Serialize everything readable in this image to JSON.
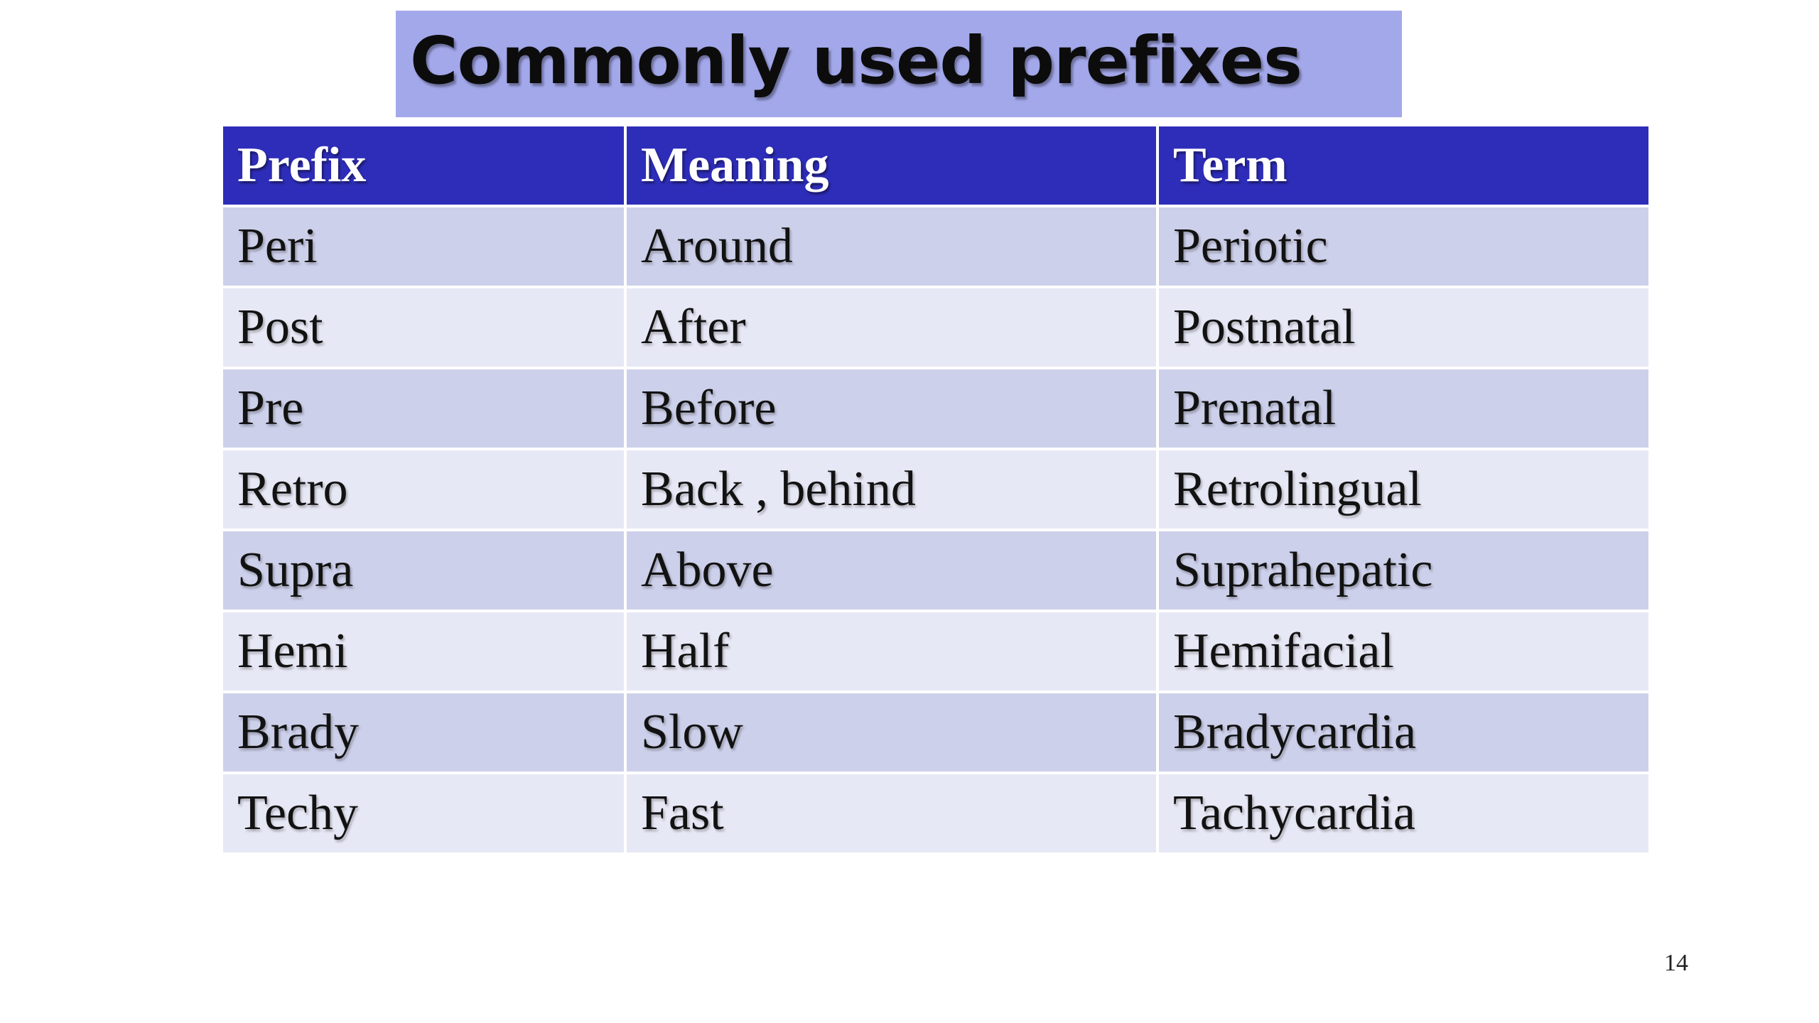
{
  "slide": {
    "title": "Commonly used prefixes",
    "page_number": "14"
  },
  "table": {
    "headers": [
      "Prefix",
      "Meaning",
      "Term"
    ],
    "rows": [
      [
        "Peri",
        "Around",
        "Periotic"
      ],
      [
        "Post",
        "After",
        "Postnatal"
      ],
      [
        "Pre",
        "Before",
        "Prenatal"
      ],
      [
        "Retro",
        "Back , behind",
        "Retrolingual"
      ],
      [
        "Supra",
        "Above",
        "Suprahepatic"
      ],
      [
        "Hemi",
        "Half",
        "Hemifacial"
      ],
      [
        "Brady",
        "Slow",
        "Bradycardia"
      ],
      [
        "Techy",
        "Fast",
        "Tachycardia"
      ]
    ]
  },
  "colors": {
    "title_background": "#a3a8ea",
    "header_background": "#2e2db9",
    "row_odd": "#cdd0ea",
    "row_even": "#e7e8f5"
  }
}
